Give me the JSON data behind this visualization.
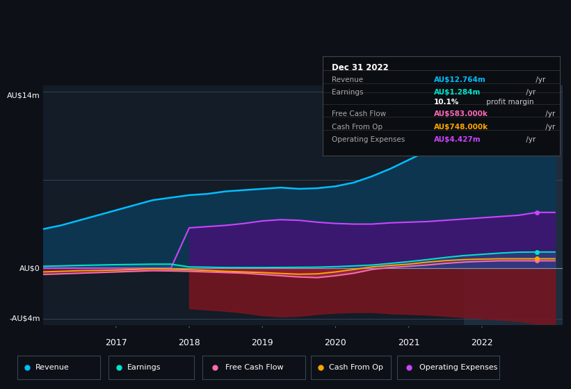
{
  "bg_color": "#0d1117",
  "plot_bg_color": "#131c27",
  "highlight_bg_color": "#1e2d3d",
  "ylabel_top": "AU$14m",
  "ylabel_zero": "AU$0",
  "ylabel_neg": "-AU$4m",
  "years": [
    2016.0,
    2016.25,
    2016.5,
    2016.75,
    2017.0,
    2017.25,
    2017.5,
    2017.75,
    2018.0,
    2018.25,
    2018.5,
    2018.75,
    2019.0,
    2019.25,
    2019.5,
    2019.75,
    2020.0,
    2020.25,
    2020.5,
    2020.75,
    2021.0,
    2021.25,
    2021.5,
    2021.75,
    2022.0,
    2022.25,
    2022.5,
    2022.75,
    2023.0
  ],
  "revenue": [
    3.1,
    3.4,
    3.8,
    4.2,
    4.6,
    5.0,
    5.4,
    5.6,
    5.8,
    5.9,
    6.1,
    6.2,
    6.3,
    6.4,
    6.3,
    6.35,
    6.5,
    6.8,
    7.3,
    7.9,
    8.6,
    9.3,
    10.2,
    10.9,
    11.6,
    12.1,
    12.5,
    12.764,
    12.764
  ],
  "operating_expenses": [
    0,
    0,
    0,
    0,
    0,
    0,
    0,
    0,
    3.2,
    3.3,
    3.4,
    3.55,
    3.75,
    3.85,
    3.8,
    3.65,
    3.55,
    3.5,
    3.5,
    3.6,
    3.65,
    3.7,
    3.8,
    3.9,
    4.0,
    4.1,
    4.2,
    4.427,
    4.427
  ],
  "earnings": [
    0.15,
    0.18,
    0.22,
    0.25,
    0.28,
    0.3,
    0.32,
    0.32,
    0.1,
    0.08,
    0.05,
    0.05,
    0.05,
    0.06,
    0.07,
    0.08,
    0.12,
    0.18,
    0.25,
    0.38,
    0.52,
    0.68,
    0.85,
    1.0,
    1.1,
    1.2,
    1.27,
    1.284,
    1.284
  ],
  "free_cash_flow": [
    -0.5,
    -0.45,
    -0.4,
    -0.35,
    -0.3,
    -0.25,
    -0.2,
    -0.22,
    -0.25,
    -0.3,
    -0.35,
    -0.4,
    -0.5,
    -0.6,
    -0.7,
    -0.75,
    -0.6,
    -0.4,
    -0.1,
    0.05,
    0.15,
    0.25,
    0.38,
    0.48,
    0.54,
    0.583,
    0.583,
    0.583,
    0.583
  ],
  "cash_from_op": [
    -0.3,
    -0.25,
    -0.2,
    -0.18,
    -0.15,
    -0.1,
    -0.05,
    -0.08,
    -0.12,
    -0.18,
    -0.25,
    -0.3,
    -0.35,
    -0.42,
    -0.48,
    -0.45,
    -0.3,
    -0.1,
    0.1,
    0.22,
    0.32,
    0.48,
    0.6,
    0.68,
    0.72,
    0.748,
    0.748,
    0.748,
    0.748
  ],
  "op_exp_neg": [
    0,
    0,
    0,
    0,
    0,
    0,
    0,
    0,
    -3.2,
    -3.3,
    -3.4,
    -3.55,
    -3.75,
    -3.85,
    -3.8,
    -3.65,
    -3.55,
    -3.5,
    -3.5,
    -3.6,
    -3.65,
    -3.7,
    -3.8,
    -3.9,
    -4.0,
    -4.1,
    -4.2,
    -4.427,
    -4.427
  ],
  "revenue_color": "#00bfff",
  "revenue_fill": "#0d3550",
  "earnings_color": "#00e5cc",
  "free_cash_flow_color": "#ff69b4",
  "cash_from_op_color": "#ffa500",
  "operating_expenses_color": "#cc44ff",
  "operating_expenses_fill": "#3a1870",
  "neg_fill_color": "#7a1520",
  "gray_fill_color": "#555566",
  "highlight_start": 2021.75,
  "xmin": 2016.0,
  "xmax": 2023.1,
  "ymin": -4.5,
  "ymax": 14.5,
  "ytick_14": 14.0,
  "ytick_0": 0.0,
  "ytick_neg4": -4.0,
  "xticks": [
    2017,
    2018,
    2019,
    2020,
    2021,
    2022
  ],
  "legend_items": [
    {
      "label": "Revenue",
      "color": "#00bfff"
    },
    {
      "label": "Earnings",
      "color": "#00e5cc"
    },
    {
      "label": "Free Cash Flow",
      "color": "#ff69b4"
    },
    {
      "label": "Cash From Op",
      "color": "#ffa500"
    },
    {
      "label": "Operating Expenses",
      "color": "#cc44ff"
    }
  ],
  "info_box": {
    "date": "Dec 31 2022",
    "rows": [
      {
        "label": "Revenue",
        "value": "AU$12.764m",
        "unit": " /yr",
        "color": "#00bfff"
      },
      {
        "label": "Earnings",
        "value": "AU$1.284m",
        "unit": " /yr",
        "color": "#00e5cc"
      },
      {
        "label": "",
        "value": "10.1%",
        "unit": " profit margin",
        "color": "#ffffff"
      },
      {
        "label": "Free Cash Flow",
        "value": "AU$583.000k",
        "unit": " /yr",
        "color": "#ff69b4"
      },
      {
        "label": "Cash From Op",
        "value": "AU$748.000k",
        "unit": " /yr",
        "color": "#ffa500"
      },
      {
        "label": "Operating Expenses",
        "value": "AU$4.427m",
        "unit": " /yr",
        "color": "#cc44ff"
      }
    ]
  }
}
